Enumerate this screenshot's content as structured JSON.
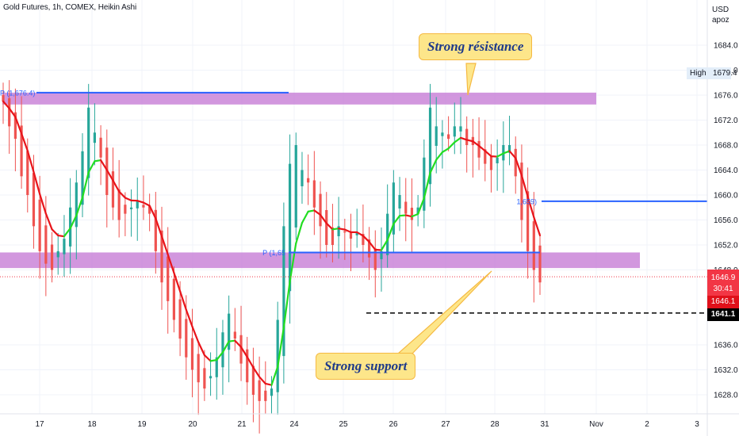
{
  "header": {
    "title": "Gold Futures, 1h, COMEX, Heikin Ashi"
  },
  "price_axis": {
    "currency": "USD",
    "unit_label": "apoz"
  },
  "annotations": {
    "resistance": "Strong résistance",
    "support": "Strong support",
    "pivot_top": "P (1,676.4)",
    "pivot_mid": "P (1,65",
    "pivot_right": "1,659)"
  },
  "high_label": {
    "key": "High",
    "value": "1679.4"
  },
  "price_tags": {
    "last": "1646.9",
    "countdown": "30:41",
    "ha_close": "1646.1",
    "level": "1641.1"
  },
  "chart_data": {
    "type": "candlestick",
    "title": "Gold Futures, 1h, COMEX, Heikin Ashi",
    "y_ticks": [
      1628.0,
      1632.0,
      1636.0,
      1648.0,
      1652.0,
      1656.0,
      1660.0,
      1664.0,
      1668.0,
      1672.0,
      1676.0,
      1680.0,
      1684.0
    ],
    "ylim": [
      1625.5,
      1690.5
    ],
    "x_ticks": [
      "17",
      "18",
      "19",
      "20",
      "21",
      "24",
      "25",
      "26",
      "27",
      "28",
      "31",
      "Nov",
      "2",
      "3"
    ],
    "candles_close": [
      1675,
      1671,
      1669,
      1663,
      1660,
      1655,
      1651,
      1649,
      1648,
      1651,
      1653,
      1658,
      1662,
      1667,
      1674,
      1670,
      1666,
      1660,
      1658,
      1656,
      1657,
      1658,
      1659,
      1658,
      1657,
      1651,
      1646,
      1643,
      1640,
      1637,
      1634,
      1632,
      1630,
      1629,
      1631,
      1634,
      1638,
      1641,
      1637,
      1633,
      1630,
      1628,
      1627,
      1627,
      1629,
      1640,
      1655,
      1665,
      1668,
      1664,
      1662,
      1658,
      1655,
      1652,
      1652,
      1655,
      1654,
      1653,
      1654,
      1652,
      1650,
      1648,
      1651,
      1657,
      1662,
      1660,
      1657,
      1656,
      1658,
      1666,
      1674,
      1671,
      1670,
      1669,
      1671,
      1671,
      1668,
      1668,
      1666,
      1665,
      1664,
      1666,
      1668,
      1668,
      1663,
      1656,
      1651,
      1648,
      1646
    ],
    "support_resistance_zones": [
      {
        "name": "Strong résistance",
        "from": 1674.5,
        "to": 1676.4
      },
      {
        "name": "Strong support",
        "from": 1648.3,
        "to": 1650.8
      }
    ],
    "horizontal_levels": [
      1676.4,
      1650.8,
      1659.0,
      1641.1
    ],
    "last_price": 1646.9,
    "heikin_close": 1646.1,
    "high": 1679.4,
    "colors": {
      "up": "#26a69a",
      "down": "#ef5350",
      "zone": "#c77dd6",
      "level": "#2962ff",
      "ma_up": "#22dd22",
      "ma_down": "#e8141a"
    }
  }
}
